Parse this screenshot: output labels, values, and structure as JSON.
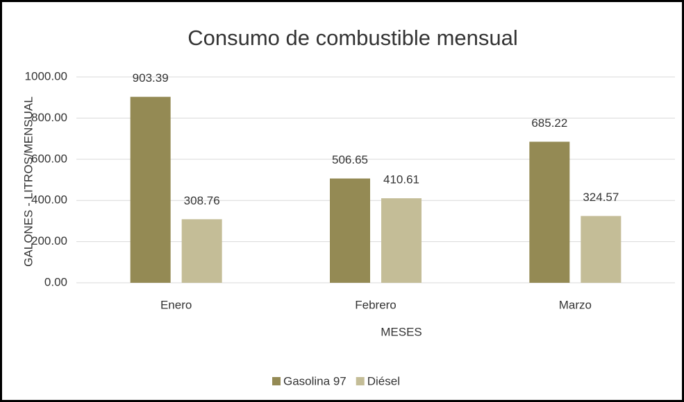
{
  "chart_data": {
    "type": "bar",
    "title": "Consumo de combustible mensual",
    "x_label": "MESES",
    "y_label": "GALONES - LITROS/MENSUAL",
    "categories": [
      "Enero",
      "Febrero",
      "Marzo"
    ],
    "series": [
      {
        "name": "Gasolina 97",
        "color": "#948a54",
        "values": [
          903.39,
          506.65,
          685.22
        ]
      },
      {
        "name": "Diésel",
        "color": "#c4bd97",
        "values": [
          308.76,
          410.61,
          324.57
        ]
      }
    ],
    "ylim": [
      0,
      1000
    ],
    "yticks": [
      {
        "value": 0,
        "label": "0.00"
      },
      {
        "value": 200,
        "label": "200.00"
      },
      {
        "value": 400,
        "label": "400.00"
      },
      {
        "value": 600,
        "label": "600.00"
      },
      {
        "value": 800,
        "label": "800.00"
      },
      {
        "value": 1000,
        "label": "1000.00"
      }
    ],
    "grid": true,
    "legend": "bottom"
  }
}
